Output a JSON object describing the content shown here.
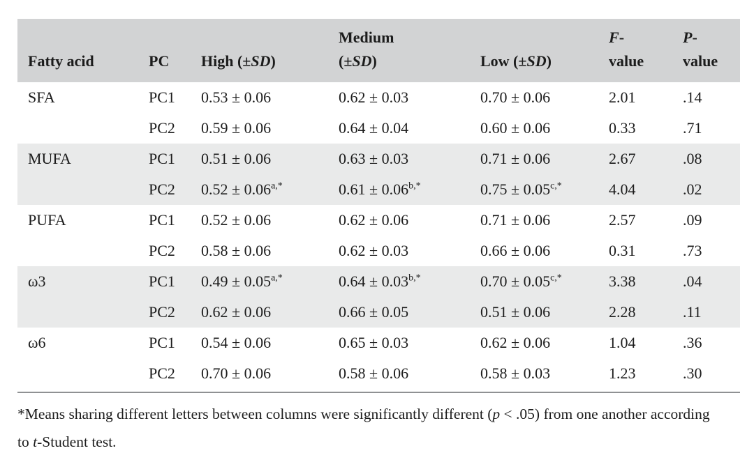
{
  "table": {
    "colors": {
      "header_bg": "#d2d3d4",
      "shaded_row_bg": "#e9eaea",
      "rule": "#8f9193",
      "text": "#1c1c1c",
      "page_bg": "#ffffff"
    },
    "header": {
      "fatty_acid": "Fatty acid",
      "pc": "PC",
      "high": {
        "pre": "High (±",
        "sd": "SD",
        "post": ")"
      },
      "medium": {
        "line1": "Medium",
        "pre": "(±",
        "sd": "SD",
        "post": ")"
      },
      "low": {
        "pre": "Low (±",
        "sd": "SD",
        "post": ")"
      },
      "f": {
        "letter": "F",
        "dash": "-",
        "word": "value"
      },
      "p": {
        "letter": "P",
        "dash": "-",
        "word": "value"
      }
    },
    "groups": [
      {
        "fatty_acid": "SFA",
        "shaded": false,
        "rows": [
          {
            "pc": "PC1",
            "high": "0.53 ± 0.06",
            "high_sup": "",
            "medium": "0.62 ± 0.03",
            "medium_sup": "",
            "low": "0.70 ± 0.06",
            "low_sup": "",
            "f_value": "2.01",
            "p_value": ".14"
          },
          {
            "pc": "PC2",
            "high": "0.59 ± 0.06",
            "high_sup": "",
            "medium": "0.64 ± 0.04",
            "medium_sup": "",
            "low": "0.60 ± 0.06",
            "low_sup": "",
            "f_value": "0.33",
            "p_value": ".71"
          }
        ]
      },
      {
        "fatty_acid": "MUFA",
        "shaded": true,
        "rows": [
          {
            "pc": "PC1",
            "high": "0.51 ± 0.06",
            "high_sup": "",
            "medium": "0.63 ± 0.03",
            "medium_sup": "",
            "low": "0.71 ± 0.06",
            "low_sup": "",
            "f_value": "2.67",
            "p_value": ".08"
          },
          {
            "pc": "PC2",
            "high": "0.52 ± 0.06",
            "high_sup": "a,*",
            "medium": "0.61 ± 0.06",
            "medium_sup": "b,*",
            "low": "0.75 ± 0.05",
            "low_sup": "c,*",
            "f_value": "4.04",
            "p_value": ".02"
          }
        ]
      },
      {
        "fatty_acid": "PUFA",
        "shaded": false,
        "rows": [
          {
            "pc": "PC1",
            "high": "0.52 ± 0.06",
            "high_sup": "",
            "medium": "0.62 ± 0.06",
            "medium_sup": "",
            "low": "0.71 ± 0.06",
            "low_sup": "",
            "f_value": "2.57",
            "p_value": ".09"
          },
          {
            "pc": "PC2",
            "high": "0.58 ± 0.06",
            "high_sup": "",
            "medium": "0.62 ± 0.03",
            "medium_sup": "",
            "low": "0.66 ± 0.06",
            "low_sup": "",
            "f_value": "0.31",
            "p_value": ".73"
          }
        ]
      },
      {
        "fatty_acid": "ω3",
        "shaded": true,
        "rows": [
          {
            "pc": "PC1",
            "high": "0.49 ± 0.05",
            "high_sup": "a,*",
            "medium": "0.64 ± 0.03",
            "medium_sup": "b,*",
            "low": "0.70 ± 0.05",
            "low_sup": "c,*",
            "f_value": "3.38",
            "p_value": ".04"
          },
          {
            "pc": "PC2",
            "high": "0.62 ± 0.06",
            "high_sup": "",
            "medium": "0.66 ± 0.05",
            "medium_sup": "",
            "low": "0.51 ± 0.06",
            "low_sup": "",
            "f_value": "2.28",
            "p_value": ".11"
          }
        ]
      },
      {
        "fatty_acid": "ω6",
        "shaded": false,
        "rows": [
          {
            "pc": "PC1",
            "high": "0.54 ± 0.06",
            "high_sup": "",
            "medium": "0.65 ± 0.03",
            "medium_sup": "",
            "low": "0.62 ± 0.06",
            "low_sup": "",
            "f_value": "1.04",
            "p_value": ".36"
          },
          {
            "pc": "PC2",
            "high": "0.70 ± 0.06",
            "high_sup": "",
            "medium": "0.58 ± 0.06",
            "medium_sup": "",
            "low": "0.58 ± 0.03",
            "low_sup": "",
            "f_value": "1.23",
            "p_value": ".30"
          }
        ]
      }
    ]
  },
  "footnote": {
    "part1": "*Means sharing different letters between columns were significantly different (",
    "italic1": "p",
    "part2": " < .05) from one another according to ",
    "italic2": "t",
    "part3": "-Student test."
  }
}
